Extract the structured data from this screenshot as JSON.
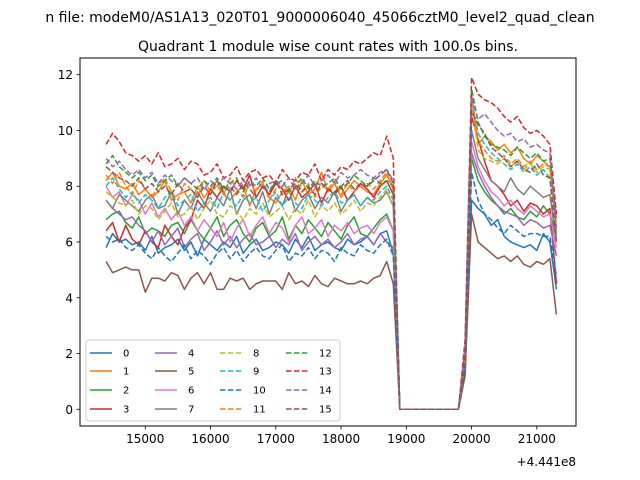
{
  "figure": {
    "suptitle": "n file: modeM0/AS1A13_020T01_9000006040_45066cztM0_level2_quad_clean",
    "title": "Quadrant 1 module wise count rates with 100.0s bins.",
    "x_offset_label": "+4.441e8"
  },
  "chart_data": {
    "type": "line",
    "title": "Quadrant 1 module wise count rates with 100.0s bins.",
    "xlabel": "",
    "ylabel": "",
    "x_offset": 444100000,
    "xlim": [
      14000,
      21600
    ],
    "ylim": [
      -0.6,
      12.6
    ],
    "x_ticks": [
      15000,
      16000,
      17000,
      18000,
      19000,
      20000,
      21000
    ],
    "y_ticks": [
      0,
      2,
      4,
      6,
      8,
      10,
      12
    ],
    "grid": false,
    "legend_placement": "lower-left",
    "legend_columns": 4,
    "segments": {
      "seg1": {
        "start": 14400,
        "end": 18800,
        "step": 100
      },
      "gap": {
        "x": [
          18900,
          19000,
          19100,
          19200,
          19300,
          19400,
          19500,
          19600,
          19700,
          19800
        ],
        "value": 0
      },
      "seg2": {
        "start": 19900,
        "end": 21300,
        "step": 100
      }
    },
    "series": [
      {
        "name": "0",
        "color": "#1f77b4",
        "style": "solid",
        "values1": [
          5.8,
          6.3,
          6.0,
          6.1,
          5.9,
          6.0,
          5.7,
          6.2,
          5.6,
          5.8,
          5.9,
          6.1,
          5.7,
          6.0,
          5.5,
          6.1,
          5.9,
          5.7,
          6.0,
          5.8,
          6.2,
          5.6,
          5.9,
          6.1,
          5.7,
          5.8,
          6.0,
          5.9,
          5.6,
          6.1,
          5.8,
          6.2,
          5.7,
          5.9,
          6.0,
          5.8,
          5.7,
          6.1,
          5.9,
          6.0,
          6.2,
          5.9,
          6.3,
          6.4,
          5.6
        ],
        "values2": [
          1.5,
          7.5,
          7.2,
          7.0,
          6.6,
          6.8,
          6.2,
          6.0,
          5.9,
          5.8,
          5.9,
          5.7,
          6.3,
          6.0,
          4.3
        ]
      },
      {
        "name": "1",
        "color": "#ff7f0e",
        "style": "solid",
        "values1": [
          8.2,
          8.5,
          8.0,
          7.9,
          8.1,
          7.7,
          7.9,
          7.6,
          7.8,
          8.2,
          7.5,
          7.7,
          7.8,
          7.4,
          8.0,
          7.6,
          7.9,
          8.2,
          7.7,
          7.5,
          7.8,
          8.0,
          7.3,
          7.9,
          8.1,
          7.6,
          7.4,
          7.8,
          8.0,
          7.5,
          8.2,
          7.7,
          7.9,
          8.5,
          7.8,
          8.1,
          7.6,
          7.9,
          8.2,
          8.0,
          7.8,
          7.7,
          8.1,
          8.4,
          7.9
        ],
        "values2": [
          2.0,
          11.3,
          9.5,
          9.8,
          9.6,
          9.3,
          9.5,
          9.2,
          9.4,
          9.0,
          8.8,
          9.1,
          8.9,
          8.7,
          6.4
        ]
      },
      {
        "name": "2",
        "color": "#2ca02c",
        "style": "solid",
        "values1": [
          6.8,
          7.0,
          7.1,
          6.7,
          6.5,
          6.9,
          6.3,
          6.5,
          6.4,
          6.2,
          6.6,
          6.7,
          6.3,
          6.8,
          6.4,
          6.1,
          6.5,
          6.9,
          6.2,
          6.6,
          6.8,
          6.3,
          6.0,
          6.5,
          6.7,
          6.2,
          6.4,
          6.9,
          6.1,
          6.6,
          6.3,
          6.8,
          6.5,
          6.2,
          6.7,
          6.4,
          6.1,
          6.6,
          6.9,
          6.3,
          6.2,
          6.5,
          6.8,
          7.0,
          6.4
        ],
        "values2": [
          1.9,
          9.0,
          8.2,
          7.8,
          7.5,
          7.3,
          7.0,
          7.2,
          6.9,
          6.8,
          7.1,
          6.9,
          7.3,
          7.0,
          6.2
        ]
      },
      {
        "name": "3",
        "color": "#d62728",
        "style": "solid",
        "values1": [
          6.4,
          6.7,
          6.0,
          6.6,
          6.1,
          5.9,
          6.4,
          6.0,
          5.8,
          6.6,
          6.2,
          5.9,
          6.5,
          6.8,
          7.5,
          7.2,
          7.9,
          7.6,
          8.0,
          7.8,
          8.2,
          7.9,
          8.4,
          7.6,
          8.0,
          7.7,
          8.1,
          7.9,
          7.5,
          8.0,
          7.6,
          7.8,
          8.1,
          7.4,
          7.9,
          7.7,
          8.0,
          7.5,
          7.8,
          8.1,
          7.9,
          7.6,
          8.0,
          8.2,
          7.7
        ],
        "values2": [
          2.1,
          10.5,
          9.7,
          8.9,
          8.2,
          8.0,
          7.7,
          7.3,
          7.5,
          7.1,
          7.4,
          7.3,
          7.0,
          7.2,
          4.5
        ]
      },
      {
        "name": "4",
        "color": "#9467bd",
        "style": "solid",
        "values1": [
          7.5,
          7.2,
          7.0,
          6.8,
          6.9,
          6.6,
          6.4,
          6.0,
          6.4,
          5.9,
          6.2,
          6.5,
          5.8,
          6.1,
          6.3,
          5.7,
          6.0,
          6.4,
          5.9,
          6.2,
          5.8,
          6.1,
          6.3,
          5.9,
          6.0,
          6.2,
          5.8,
          6.1,
          5.9,
          6.3,
          5.7,
          6.0,
          6.2,
          5.9,
          6.1,
          5.8,
          6.0,
          6.3,
          5.9,
          6.1,
          6.2,
          5.9,
          6.3,
          6.0,
          5.8
        ],
        "values2": [
          1.7,
          9.2,
          8.5,
          8.0,
          7.6,
          7.3,
          7.1,
          7.0,
          6.9,
          6.6,
          6.8,
          6.7,
          6.5,
          6.6,
          5.5
        ]
      },
      {
        "name": "5",
        "color": "#8c564b",
        "style": "solid",
        "values1": [
          5.3,
          4.9,
          5.0,
          5.1,
          5.0,
          5.0,
          4.2,
          4.7,
          4.7,
          4.6,
          4.9,
          4.8,
          4.3,
          4.7,
          4.9,
          4.5,
          4.9,
          4.3,
          4.3,
          4.7,
          4.6,
          4.7,
          4.3,
          4.5,
          4.6,
          4.6,
          4.6,
          4.3,
          4.9,
          4.5,
          4.6,
          4.4,
          4.8,
          4.5,
          4.4,
          4.7,
          4.6,
          4.5,
          4.5,
          4.6,
          4.5,
          4.7,
          4.8,
          5.3,
          4.5
        ],
        "values2": [
          1.2,
          7.0,
          6.0,
          5.8,
          5.6,
          5.4,
          5.5,
          5.3,
          5.5,
          5.2,
          5.1,
          5.3,
          5.2,
          5.4,
          3.4
        ]
      },
      {
        "name": "6",
        "color": "#e377c2",
        "style": "solid",
        "values1": [
          8.0,
          7.6,
          7.8,
          7.3,
          7.7,
          7.5,
          7.0,
          7.4,
          6.9,
          7.2,
          6.8,
          7.1,
          6.6,
          6.9,
          6.4,
          6.8,
          6.5,
          6.2,
          6.7,
          6.0,
          6.5,
          6.8,
          6.2,
          6.6,
          6.9,
          6.3,
          6.7,
          6.5,
          6.0,
          6.6,
          6.9,
          6.3,
          6.5,
          6.8,
          6.2,
          6.6,
          6.4,
          6.7,
          6.3,
          6.5,
          6.6,
          6.3,
          6.7,
          6.9,
          6.4
        ],
        "values2": [
          1.8,
          9.6,
          8.7,
          8.2,
          7.8,
          7.6,
          7.3,
          7.5,
          7.2,
          7.0,
          7.3,
          7.1,
          6.9,
          7.0,
          5.8
        ]
      },
      {
        "name": "7",
        "color": "#7f7f7f",
        "style": "solid",
        "values1": [
          7.5,
          7.2,
          7.7,
          7.5,
          7.3,
          7.1,
          7.5,
          7.7,
          7.2,
          7.3,
          7.8,
          7.0,
          7.5,
          7.2,
          7.8,
          7.4,
          7.1,
          7.6,
          7.3,
          7.9,
          7.0,
          7.5,
          7.7,
          7.2,
          7.8,
          7.0,
          7.6,
          7.3,
          7.9,
          7.1,
          7.5,
          7.7,
          7.2,
          7.6,
          7.4,
          7.8,
          7.1,
          7.5,
          7.7,
          7.3,
          7.6,
          7.4,
          7.5,
          7.8,
          7.3
        ],
        "values2": [
          1.9,
          10.0,
          9.0,
          8.6,
          8.2,
          8.0,
          7.8,
          8.3,
          7.9,
          7.7,
          8.0,
          7.8,
          7.6,
          7.7,
          6.0
        ]
      },
      {
        "name": "8",
        "color": "#bcbd22",
        "style": "dashed",
        "values1": [
          7.8,
          7.6,
          7.4,
          7.3,
          7.5,
          7.0,
          7.3,
          7.2,
          6.8,
          7.1,
          7.4,
          6.9,
          7.0,
          7.3,
          6.8,
          7.2,
          7.5,
          7.0,
          6.9,
          7.3,
          7.1,
          6.8,
          7.2,
          7.0,
          7.4,
          6.9,
          7.1,
          7.3,
          6.8,
          7.2,
          7.0,
          7.5,
          6.9,
          7.3,
          7.1,
          7.4,
          7.0,
          7.2,
          7.5,
          7.1,
          7.4,
          7.3,
          7.6,
          7.9,
          7.2
        ],
        "values2": [
          2.0,
          11.0,
          9.3,
          9.0,
          8.9,
          8.8,
          9.0,
          8.7,
          8.9,
          8.6,
          8.8,
          8.5,
          8.7,
          8.6,
          6.3
        ]
      },
      {
        "name": "9",
        "color": "#17becf",
        "style": "dashed",
        "values1": [
          8.0,
          8.3,
          7.9,
          7.6,
          7.8,
          7.4,
          7.7,
          7.5,
          7.2,
          7.6,
          7.8,
          7.3,
          7.5,
          7.7,
          7.1,
          7.4,
          7.6,
          7.2,
          7.8,
          7.5,
          7.3,
          7.7,
          7.4,
          7.6,
          7.1,
          7.5,
          7.8,
          7.3,
          7.6,
          7.4,
          7.2,
          7.7,
          7.5,
          7.3,
          7.6,
          7.8,
          7.4,
          7.5,
          7.7,
          7.3,
          7.6,
          7.5,
          7.8,
          8.0,
          7.5
        ],
        "values2": [
          2.1,
          11.1,
          9.9,
          9.5,
          9.2,
          9.0,
          8.8,
          8.6,
          8.8,
          8.5,
          8.7,
          8.4,
          8.6,
          8.3,
          6.2
        ]
      },
      {
        "name": "10",
        "color": "#1f77b4",
        "style": "dashed",
        "values1": [
          6.2,
          6.0,
          6.1,
          5.8,
          5.7,
          5.9,
          5.6,
          5.4,
          5.8,
          5.5,
          5.3,
          5.6,
          5.9,
          5.4,
          5.7,
          5.5,
          5.2,
          5.6,
          5.8,
          5.4,
          5.7,
          5.3,
          5.6,
          5.8,
          5.5,
          5.4,
          5.7,
          5.9,
          5.3,
          5.6,
          5.5,
          5.8,
          5.4,
          5.7,
          5.6,
          5.3,
          5.8,
          5.6,
          5.5,
          5.9,
          5.7,
          5.6,
          5.9,
          6.1,
          5.5
        ],
        "values2": [
          1.6,
          8.5,
          7.5,
          7.0,
          6.8,
          6.5,
          6.3,
          6.6,
          6.4,
          6.2,
          6.3,
          6.3,
          6.2,
          6.2,
          4.8
        ]
      },
      {
        "name": "11",
        "color": "#ff7f0e",
        "style": "dashed",
        "values1": [
          8.4,
          8.1,
          8.5,
          8.0,
          7.7,
          8.2,
          7.9,
          7.6,
          8.0,
          8.3,
          7.8,
          7.5,
          8.1,
          7.9,
          7.6,
          8.2,
          7.8,
          8.0,
          7.7,
          8.3,
          7.9,
          7.6,
          8.1,
          7.8,
          8.2,
          7.5,
          7.9,
          8.0,
          7.7,
          8.3,
          7.8,
          8.1,
          7.6,
          8.0,
          7.9,
          8.2,
          7.7,
          8.1,
          7.8,
          8.0,
          8.1,
          7.9,
          8.2,
          8.5,
          7.9
        ],
        "values2": [
          2.0,
          11.2,
          9.6,
          9.3,
          9.0,
          8.9,
          9.1,
          8.8,
          9.0,
          8.7,
          8.9,
          8.6,
          8.8,
          8.7,
          6.6
        ]
      },
      {
        "name": "12",
        "color": "#2ca02c",
        "style": "dashed",
        "values1": [
          8.8,
          9.1,
          8.7,
          8.5,
          8.3,
          8.5,
          8.2,
          8.4,
          8.0,
          8.2,
          8.4,
          8.0,
          8.3,
          8.1,
          7.9,
          8.2,
          8.0,
          8.3,
          7.9,
          8.1,
          8.3,
          7.8,
          8.2,
          8.0,
          8.3,
          7.9,
          8.1,
          8.2,
          7.8,
          8.0,
          8.3,
          7.9,
          8.2,
          8.0,
          8.1,
          8.3,
          7.9,
          8.1,
          8.4,
          8.2,
          8.0,
          8.3,
          8.1,
          8.2,
          8.0
        ],
        "values2": [
          2.2,
          11.5,
          10.3,
          9.8,
          9.5,
          9.4,
          9.3,
          9.1,
          9.4,
          9.2,
          9.0,
          9.2,
          8.9,
          9.0,
          6.8
        ]
      },
      {
        "name": "13",
        "color": "#d62728",
        "style": "dashed",
        "values1": [
          9.5,
          9.9,
          9.6,
          9.2,
          9.1,
          8.9,
          9.1,
          8.8,
          9.2,
          8.7,
          8.8,
          9.0,
          8.6,
          8.9,
          8.8,
          8.4,
          8.5,
          8.8,
          8.3,
          8.4,
          8.7,
          8.2,
          8.5,
          8.6,
          8.3,
          8.4,
          8.1,
          8.6,
          8.3,
          8.2,
          8.5,
          8.4,
          8.8,
          8.2,
          8.6,
          8.4,
          8.7,
          8.6,
          8.9,
          8.8,
          9.0,
          9.2,
          9.1,
          9.8,
          9.0
        ],
        "values2": [
          2.5,
          11.9,
          11.3,
          11.1,
          11.0,
          10.8,
          10.5,
          10.3,
          10.5,
          10.1,
          9.9,
          10.0,
          9.8,
          9.5,
          7.0
        ]
      },
      {
        "name": "14",
        "color": "#9467bd",
        "style": "dashed",
        "values1": [
          9.0,
          8.7,
          8.9,
          8.6,
          8.4,
          8.6,
          8.3,
          8.5,
          8.1,
          8.4,
          8.2,
          8.0,
          8.3,
          8.1,
          8.3,
          7.9,
          8.2,
          8.0,
          8.3,
          8.1,
          7.9,
          8.2,
          8.0,
          8.3,
          7.9,
          8.1,
          8.2,
          8.0,
          8.3,
          7.9,
          8.1,
          8.4,
          8.0,
          8.2,
          8.4,
          8.1,
          8.5,
          8.3,
          8.4,
          8.6,
          8.4,
          8.3,
          8.5,
          8.6,
          8.2
        ],
        "values2": [
          2.3,
          11.2,
          10.4,
          10.6,
          10.3,
          10.0,
          9.8,
          9.9,
          9.6,
          9.7,
          9.4,
          9.5,
          9.3,
          9.2,
          6.5
        ]
      },
      {
        "name": "15",
        "color": "#8c564b",
        "style": "dashed",
        "values1": [
          8.7,
          8.5,
          8.3,
          8.2,
          8.0,
          8.3,
          7.9,
          8.1,
          7.8,
          8.0,
          7.7,
          8.1,
          7.8,
          7.9,
          7.6,
          8.0,
          7.7,
          8.2,
          7.8,
          8.0,
          7.7,
          8.1,
          7.9,
          7.6,
          8.0,
          7.8,
          8.2,
          7.7,
          7.9,
          8.1,
          7.8,
          8.0,
          7.7,
          8.1,
          7.9,
          7.8,
          8.0,
          8.2,
          7.9,
          8.1,
          8.0,
          8.2,
          8.4,
          8.6,
          8.1
        ],
        "values2": [
          2.0,
          10.7,
          10.2,
          9.9,
          9.4,
          9.2,
          9.0,
          8.7,
          8.9,
          8.6,
          8.5,
          8.8,
          8.4,
          8.3,
          6.0
        ]
      }
    ]
  }
}
